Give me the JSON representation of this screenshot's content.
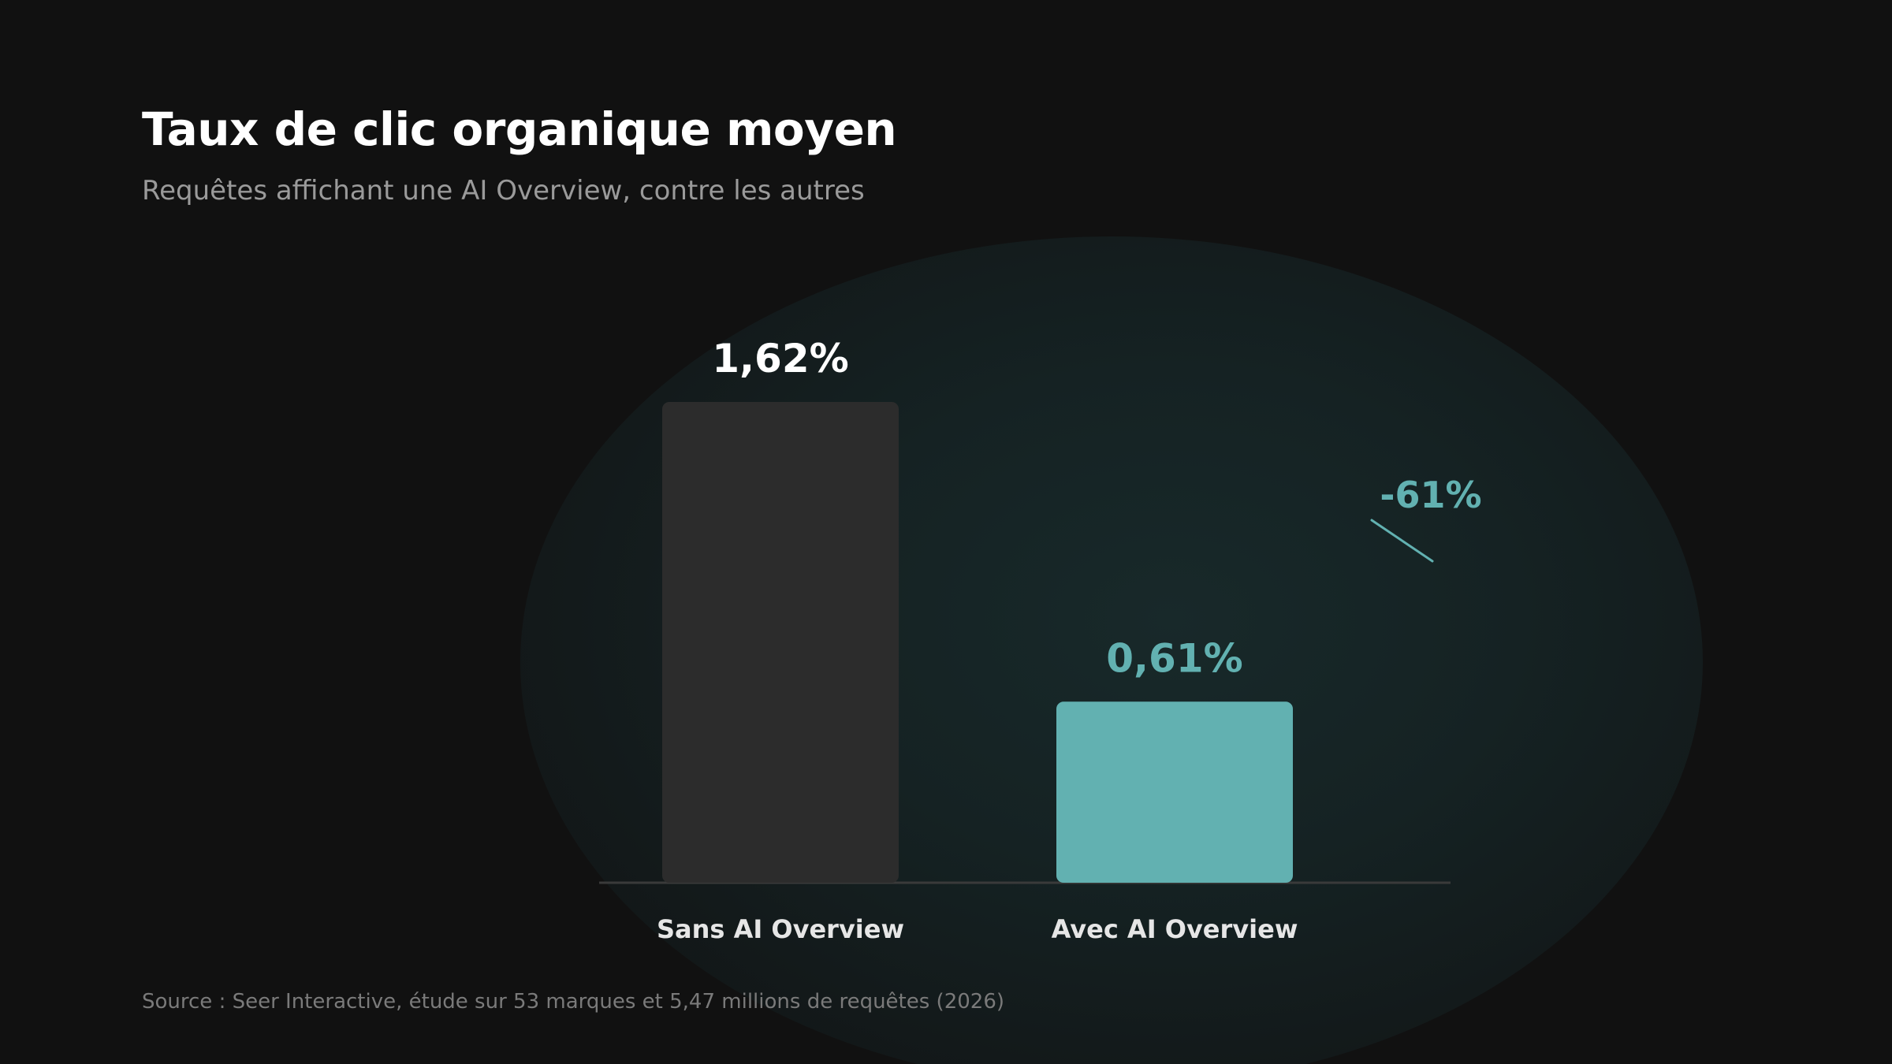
{
  "title": "Taux de clic organique moyen",
  "subtitle": "Requêtes affichant une AI Overview, contre les autres",
  "source": "Source : Seer Interactive, étude sur 53 marques et 5,47 millions de requêtes (2026)",
  "colors": {
    "background": "#111111",
    "bar_sans": "#2c2c2c",
    "bar_avec": "#62b1b1",
    "accent": "#62b1b1",
    "value_sans": "#ffffff",
    "axis": "#3a3a3a"
  },
  "chart_data": {
    "type": "bar",
    "title": "Taux de clic organique moyen",
    "subtitle": "Requêtes affichant une AI Overview, contre les autres",
    "categories": [
      "Sans AI Overview",
      "Avec AI Overview"
    ],
    "values": [
      1.62,
      0.61
    ],
    "value_labels": [
      "1,62%",
      "0,61%"
    ],
    "unit": "%",
    "ylim": [
      0,
      1.62
    ],
    "grid": false,
    "annotation": {
      "text": "-61%",
      "description_value": -61
    }
  }
}
